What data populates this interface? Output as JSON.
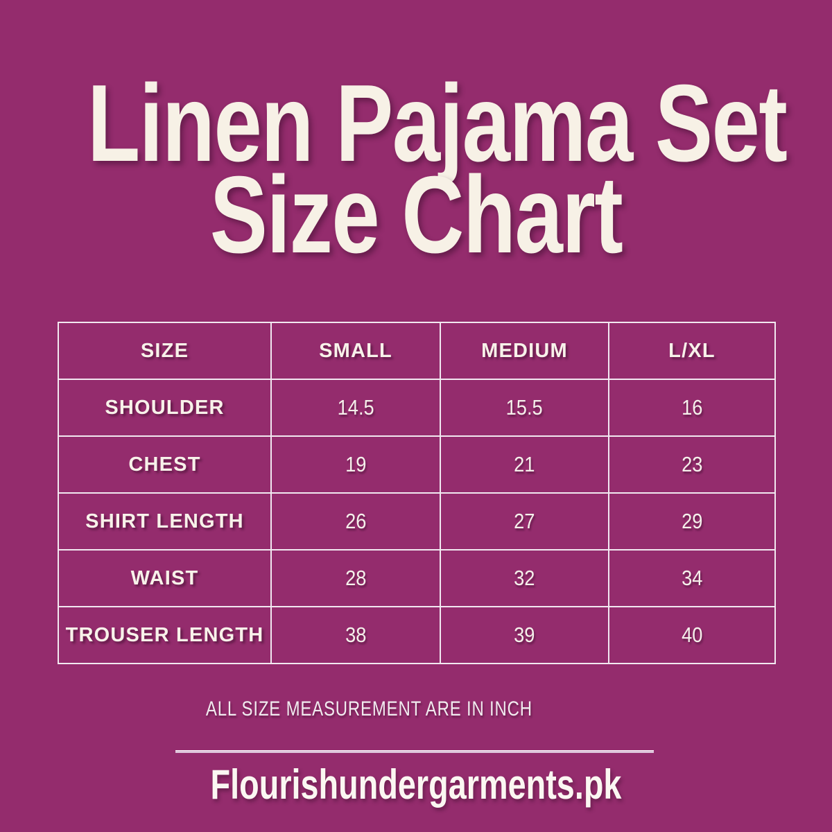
{
  "page": {
    "background_color": "#942c6d",
    "text_color": "#f7f1e6",
    "table_border_color": "#f2e9f1"
  },
  "title": {
    "line1": "Linen Pajama Set",
    "line2": "Size Chart"
  },
  "chart_data": {
    "type": "table",
    "title": "Linen Pajama Set Size Chart",
    "columns": [
      "SIZE",
      "SMALL",
      "MEDIUM",
      "L/XL"
    ],
    "rows": [
      {
        "label": "SHOULDER",
        "values": [
          "14.5",
          "15.5",
          "16"
        ]
      },
      {
        "label": "CHEST",
        "values": [
          "19",
          "21",
          "23"
        ]
      },
      {
        "label": "SHIRT LENGTH",
        "values": [
          "26",
          "27",
          "29"
        ]
      },
      {
        "label": "WAIST",
        "values": [
          "28",
          "32",
          "34"
        ]
      },
      {
        "label": "TROUSER LENGTH",
        "values": [
          "38",
          "39",
          "40"
        ]
      }
    ]
  },
  "note": {
    "text": "ALL SIZE MEASUREMENT ARE IN INCH"
  },
  "footer": {
    "brand": "Flourishundergarments.pk"
  }
}
